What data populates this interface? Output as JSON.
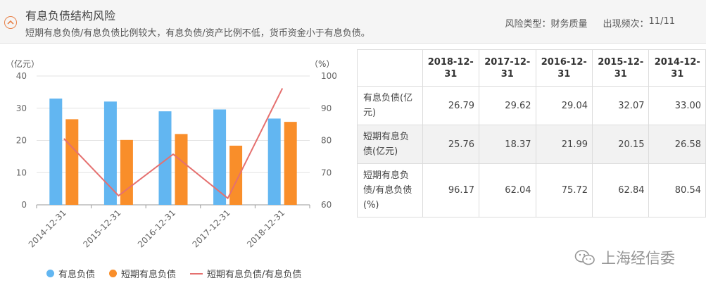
{
  "header": {
    "title": "有息负债结构风险",
    "description": "短期有息负债/有息负债比例较大，有息负债/资产比例不低，货币资金小于有息负债。",
    "risk_type_label": "风险类型：",
    "risk_type_value": "财务质量",
    "frequency_label": "出现频次：",
    "frequency_value": "11/11"
  },
  "chart_data": {
    "type": "bar",
    "categories": [
      "2014-12-31",
      "2015-12-31",
      "2016-12-31",
      "2017-12-31",
      "2018-12-31"
    ],
    "series": [
      {
        "name": "有息负债",
        "type": "bar",
        "axis": "left",
        "color": "#62b6f1",
        "values": [
          33.0,
          32.07,
          29.04,
          29.62,
          26.79
        ]
      },
      {
        "name": "短期有息负债",
        "type": "bar",
        "axis": "left",
        "color": "#f98e2a",
        "values": [
          26.58,
          20.15,
          21.99,
          18.37,
          25.76
        ]
      },
      {
        "name": "短期有息负债/有息负债",
        "type": "line",
        "axis": "right",
        "color": "#e5706f",
        "values": [
          80.54,
          62.84,
          75.72,
          62.04,
          96.17
        ]
      }
    ],
    "y_left": {
      "label": "（亿元）",
      "ylim": [
        0,
        40
      ],
      "ticks": [
        0,
        10,
        20,
        30,
        40
      ]
    },
    "y_right": {
      "label": "（%）",
      "ylim": [
        60,
        100
      ],
      "ticks": [
        60,
        70,
        80,
        90,
        100
      ]
    },
    "legend": "bottom",
    "grid": true
  },
  "table": {
    "years": [
      "2018-12-31",
      "2017-12-31",
      "2016-12-31",
      "2015-12-31",
      "2014-12-31"
    ],
    "year_lines": [
      [
        "2018-12-",
        "31"
      ],
      [
        "2017-12-",
        "31"
      ],
      [
        "2016-12-",
        "31"
      ],
      [
        "2015-12-",
        "31"
      ],
      [
        "2014-12-",
        "31"
      ]
    ],
    "rows": [
      {
        "label_lines": [
          "有息负债(亿",
          "元)"
        ],
        "values": [
          "26.79",
          "29.62",
          "29.04",
          "32.07",
          "33.00"
        ]
      },
      {
        "label_lines": [
          "短期有息负",
          "债(亿元)"
        ],
        "values": [
          "25.76",
          "18.37",
          "21.99",
          "20.15",
          "26.58"
        ]
      },
      {
        "label_lines": [
          "短期有息负",
          "债/有息负债",
          "(%)"
        ],
        "values": [
          "96.17",
          "62.04",
          "75.72",
          "62.84",
          "80.54"
        ]
      }
    ]
  },
  "watermark": {
    "text": "上海经信委",
    "icon": "wechat-icon"
  }
}
